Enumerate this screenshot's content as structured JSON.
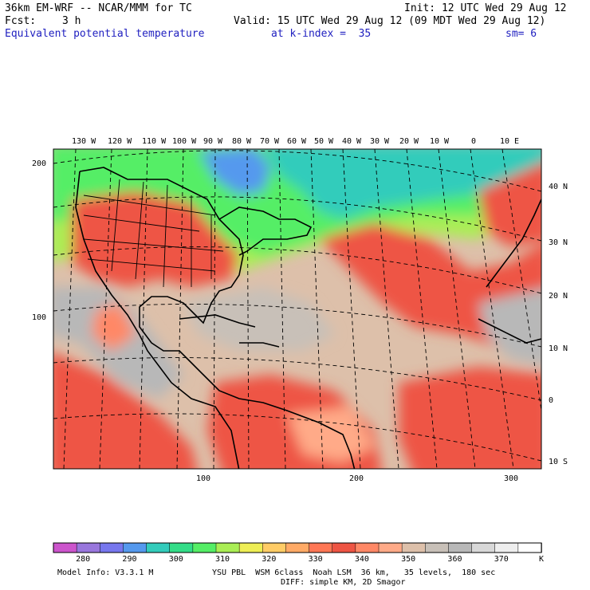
{
  "header": {
    "model": "36km EM-WRF -- NCAR/MMM for TC",
    "init": "Init: 12 UTC Wed 29 Aug 12",
    "fcst_label": "Fcst:",
    "fcst_value": "3 h",
    "valid": "Valid: 15 UTC Wed 29 Aug 12 (09 MDT Wed 29 Aug 12)",
    "field": "Equivalent potential temperature",
    "level": "at k-index =  35",
    "smooth": "sm= 6"
  },
  "axes": {
    "top_lon_labels": [
      "130 W",
      "120 W",
      "110 W",
      "100 W",
      "90 W",
      "80 W",
      "70 W",
      "60 W",
      "50 W",
      "40 W",
      "30 W",
      "20 W",
      "10 W",
      "0",
      "10 E"
    ],
    "right_lat_labels": [
      "40 N",
      "30 N",
      "20 N",
      "10 N",
      "0",
      "10 S"
    ],
    "left_grid_labels": [
      "200",
      "100"
    ],
    "bottom_grid_labels": [
      "100",
      "200",
      "300"
    ]
  },
  "colorbar": {
    "tick_labels": [
      "280",
      "290",
      "300",
      "310",
      "320",
      "330",
      "340",
      "350",
      "360",
      "370"
    ],
    "unit": "K",
    "colors": [
      "#cc55cc",
      "#9977dd",
      "#7777ee",
      "#5599ee",
      "#33ccbb",
      "#33dd88",
      "#55ee66",
      "#aaee55",
      "#eeee55",
      "#ffcc66",
      "#ffaa66",
      "#ff7755",
      "#ee5544",
      "#ff8866",
      "#ffaa88",
      "#ddc0aa",
      "#c8c0b8",
      "#b8b8b8",
      "#d8d8d8",
      "#eeeeee",
      "#ffffff"
    ]
  },
  "footer": {
    "model_info": "Model Info: V3.3.1 M",
    "physics": "YSU PBL  WSM 6class  Noah LSM  36 km,   35 levels,  180 sec",
    "diffusion": "DIFF: simple KM, 2D Smagor"
  },
  "colors": {
    "title_blue": "#2020c0",
    "warm_red": "#ee5544",
    "cool_green": "#55ee66",
    "cold_blue": "#5599ee",
    "neutral_tan": "#ddc0aa"
  }
}
